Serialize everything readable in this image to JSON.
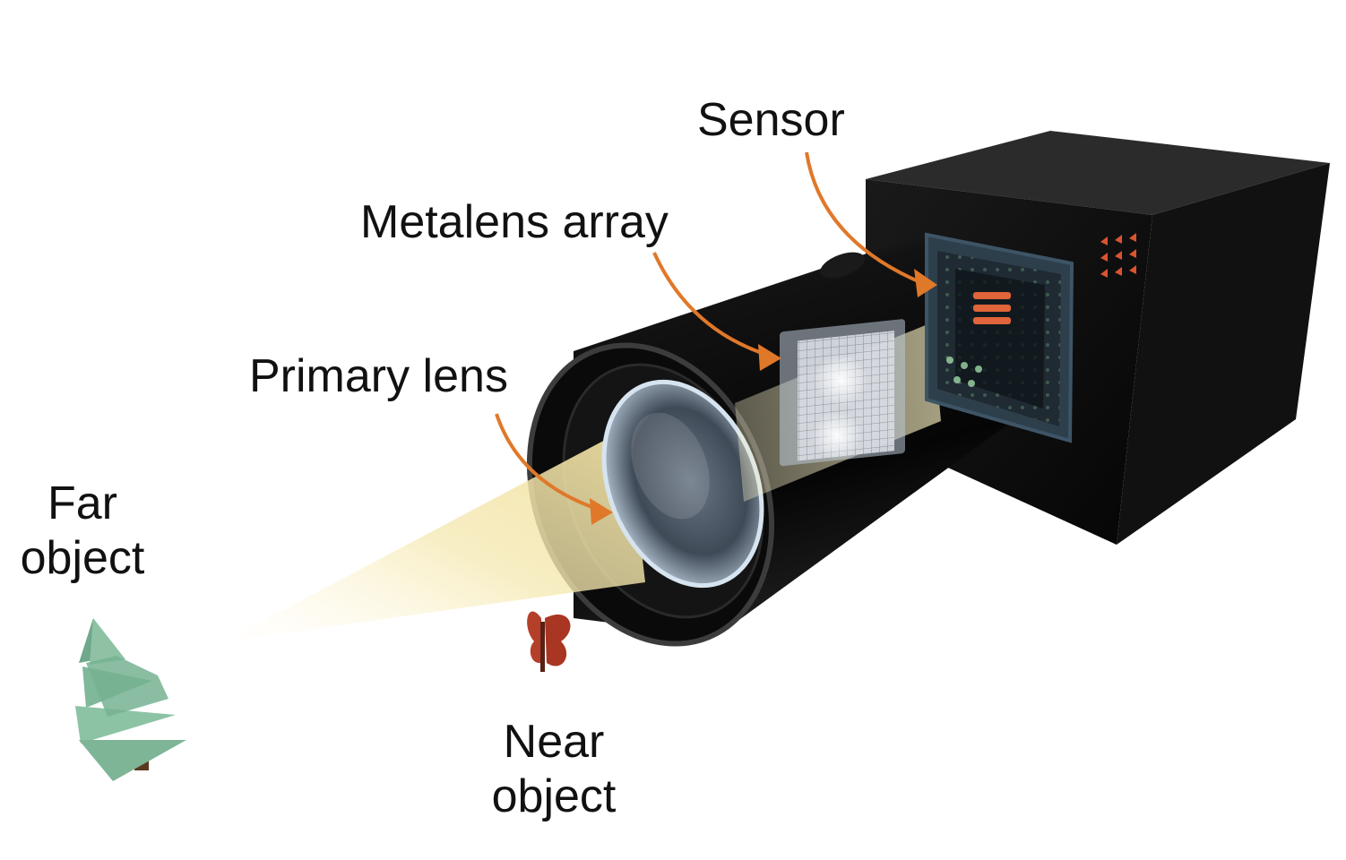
{
  "labels": {
    "sensor": "Sensor",
    "metalens_array": "Metalens array",
    "primary_lens": "Primary lens",
    "far_object_line1": "Far",
    "far_object_line2": "object",
    "near_object_line1": "Near",
    "near_object_line2": "object"
  },
  "colors": {
    "arrow": "#e0782a",
    "camera_body": "#0b0b0b",
    "light_beam": "#f3e6a8",
    "tree": "#7fb89a",
    "butterfly": "#b5402a",
    "lens_glass": "#c9d8e6"
  }
}
